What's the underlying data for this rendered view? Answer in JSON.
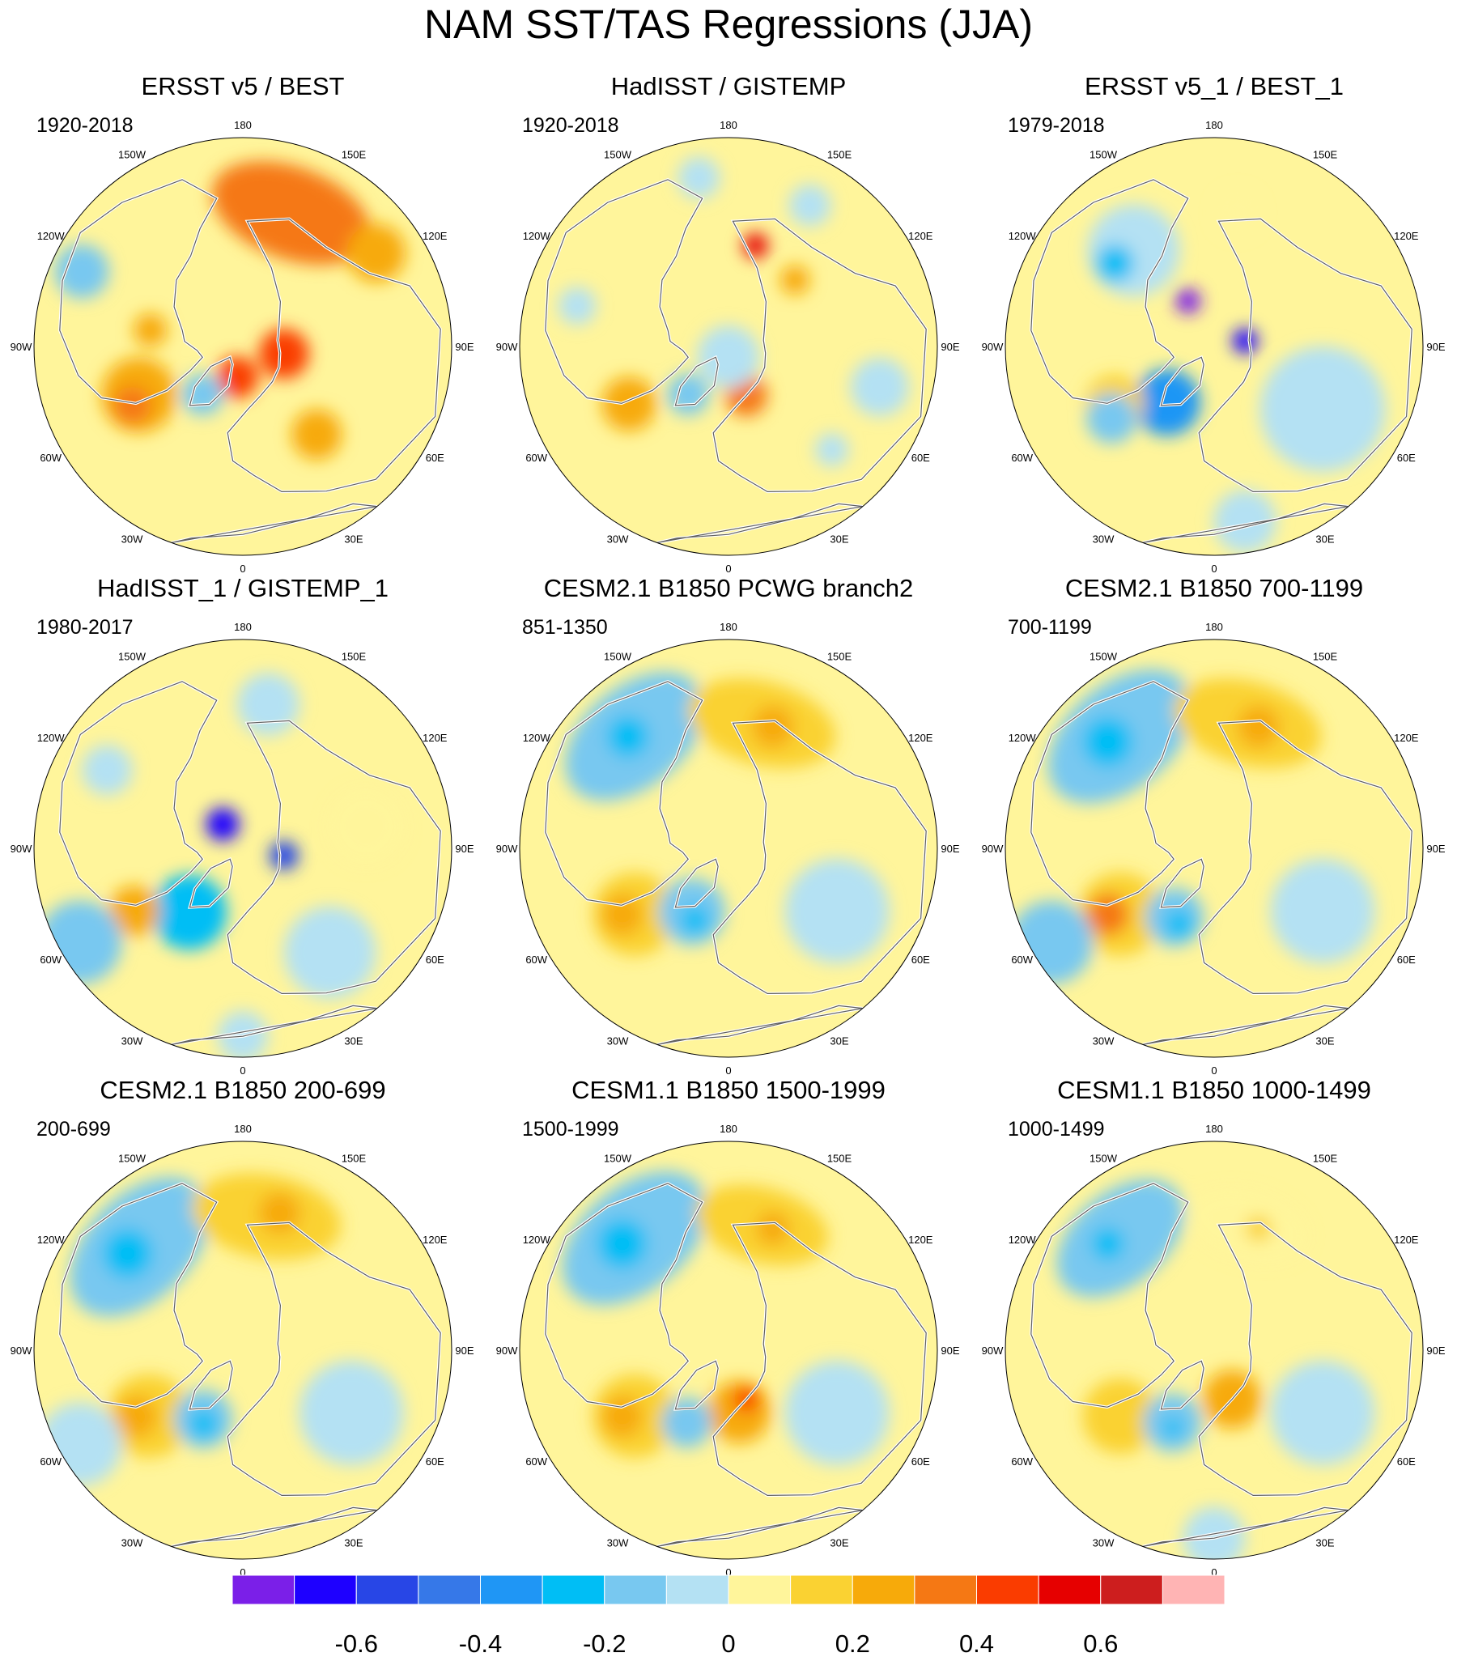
{
  "title": "NAM SST/TAS Regressions (JJA)",
  "longitude_labels": [
    "180",
    "150E",
    "120E",
    "90E",
    "60E",
    "30E",
    "0",
    "30W",
    "60W",
    "90W",
    "120W",
    "150W"
  ],
  "colors": {
    "background": "#ffffff",
    "land_outline": "#606060",
    "coast": "#ffffff"
  },
  "chart_data": {
    "type": "heatmap",
    "projection": "north-polar-stereographic",
    "variable": "SST/TAS regression on NAM",
    "season": "JJA",
    "panels": [
      {
        "title": "ERSST v5 / BEST",
        "period": "1920-2018"
      },
      {
        "title": "HadISST / GISTEMP",
        "period": "1920-2018"
      },
      {
        "title": "ERSST v5_1 / BEST_1",
        "period": "1979-2018"
      },
      {
        "title": "HadISST_1 / GISTEMP_1",
        "period": "1980-2017"
      },
      {
        "title": "CESM2.1 B1850 PCWG branch2",
        "period": "851-1350"
      },
      {
        "title": "CESM2.1 B1850 700-1199",
        "period": "700-1199"
      },
      {
        "title": "CESM2.1 B1850 200-699",
        "period": "200-699"
      },
      {
        "title": "CESM1.1 B1850 1500-1999",
        "period": "1500-1999"
      },
      {
        "title": "CESM1.1 B1850 1000-1499",
        "period": "1000-1499"
      }
    ],
    "colorbar": {
      "levels": [
        -0.7,
        -0.6,
        -0.5,
        -0.4,
        -0.3,
        -0.2,
        -0.1,
        0,
        0.1,
        0.2,
        0.3,
        0.4,
        0.5,
        0.6,
        0.7
      ],
      "colors": [
        "#7b1fe8",
        "#1e00ff",
        "#2846e6",
        "#3678e8",
        "#1f96f5",
        "#00bef5",
        "#78c8f0",
        "#b4e1f3",
        "#fff59b",
        "#fad232",
        "#f7aa0a",
        "#f57814",
        "#fa3c00",
        "#e60000",
        "#cd1e1e",
        "#ffb4b4"
      ],
      "tick_labels": [
        "-0.6",
        "-0.4",
        "-0.2",
        "0",
        "0.2",
        "0.4",
        "0.6"
      ],
      "tick_values": [
        -0.6,
        -0.4,
        -0.2,
        0,
        0.2,
        0.4,
        0.6
      ]
    },
    "anomaly_blobs": [
      [
        {
          "lon": 160,
          "r": 0.68,
          "size": 0.22,
          "cat": 11,
          "aspect": 1.8
        },
        {
          "lon": 125,
          "r": 0.78,
          "size": 0.14,
          "cat": 10
        },
        {
          "lon": 80,
          "r": 0.2,
          "size": 0.12,
          "cat": 12
        },
        {
          "lon": -10,
          "r": 0.15,
          "size": 0.1,
          "cat": 12
        },
        {
          "lon": -65,
          "r": 0.55,
          "size": 0.18,
          "cat": 10
        },
        {
          "lon": -62,
          "r": 0.6,
          "size": 0.09,
          "cat": 11
        },
        {
          "lon": -115,
          "r": 0.85,
          "size": 0.13,
          "cat": 6
        },
        {
          "lon": -40,
          "r": 0.3,
          "size": 0.1,
          "cat": 6
        },
        {
          "lon": 40,
          "r": 0.55,
          "size": 0.12,
          "cat": 10
        },
        {
          "lon": -100,
          "r": 0.45,
          "size": 0.08,
          "cat": 10
        }
      ],
      [
        {
          "lon": 150,
          "r": 0.78,
          "size": 0.1,
          "cat": 7
        },
        {
          "lon": -170,
          "r": 0.82,
          "size": 0.1,
          "cat": 7
        },
        {
          "lon": 165,
          "r": 0.5,
          "size": 0.06,
          "cat": 13
        },
        {
          "lon": -60,
          "r": 0.55,
          "size": 0.13,
          "cat": 10
        },
        {
          "lon": -40,
          "r": 0.3,
          "size": 0.1,
          "cat": 6
        },
        {
          "lon": 20,
          "r": 0.25,
          "size": 0.1,
          "cat": 11
        },
        {
          "lon": 0,
          "r": 0.05,
          "size": 0.15,
          "cat": 7
        },
        {
          "lon": 75,
          "r": 0.75,
          "size": 0.14,
          "cat": 7
        },
        {
          "lon": -105,
          "r": 0.75,
          "size": 0.09,
          "cat": 7
        },
        {
          "lon": 45,
          "r": 0.7,
          "size": 0.08,
          "cat": 7
        },
        {
          "lon": 135,
          "r": 0.45,
          "size": 0.07,
          "cat": 10
        }
      ],
      [
        {
          "lon": -140,
          "r": 0.6,
          "size": 0.22,
          "cat": 7
        },
        {
          "lon": -130,
          "r": 0.62,
          "size": 0.09,
          "cat": 5
        },
        {
          "lon": 170,
          "r": 0.65,
          "size": 0.1,
          "cat": 8
        },
        {
          "lon": -40,
          "r": 0.35,
          "size": 0.16,
          "cat": 4
        },
        {
          "lon": -60,
          "r": 0.55,
          "size": 0.14,
          "cat": 9
        },
        {
          "lon": -55,
          "r": 0.6,
          "size": 0.12,
          "cat": 6
        },
        {
          "lon": 60,
          "r": 0.6,
          "size": 0.3,
          "cat": 7
        },
        {
          "lon": 10,
          "r": 0.85,
          "size": 0.15,
          "cat": 7
        },
        {
          "lon": 100,
          "r": 0.15,
          "size": 0.06,
          "cat": 1
        },
        {
          "lon": -150,
          "r": 0.25,
          "size": 0.06,
          "cat": 0
        }
      ],
      [
        {
          "lon": -40,
          "r": 0.4,
          "size": 0.18,
          "cat": 5
        },
        {
          "lon": -60,
          "r": 0.6,
          "size": 0.12,
          "cat": 10
        },
        {
          "lon": -60,
          "r": 0.9,
          "size": 0.2,
          "cat": 6
        },
        {
          "lon": 0,
          "r": 0.9,
          "size": 0.12,
          "cat": 7
        },
        {
          "lon": 40,
          "r": 0.65,
          "size": 0.22,
          "cat": 7
        },
        {
          "lon": 170,
          "r": 0.7,
          "size": 0.15,
          "cat": 7
        },
        {
          "lon": -140,
          "r": 0.15,
          "size": 0.08,
          "cat": 1
        },
        {
          "lon": 80,
          "r": 0.2,
          "size": 0.07,
          "cat": 2
        },
        {
          "lon": 100,
          "r": 0.6,
          "size": 0.18,
          "cat": 8
        },
        {
          "lon": -120,
          "r": 0.75,
          "size": 0.12,
          "cat": 7
        }
      ],
      [
        {
          "lon": -140,
          "r": 0.7,
          "size": 0.24,
          "cat": 6,
          "aspect": 1.6
        },
        {
          "lon": -138,
          "r": 0.72,
          "size": 0.1,
          "cat": 5
        },
        {
          "lon": 165,
          "r": 0.62,
          "size": 0.2,
          "cat": 9,
          "aspect": 1.8
        },
        {
          "lon": 160,
          "r": 0.62,
          "size": 0.1,
          "cat": 10
        },
        {
          "lon": -55,
          "r": 0.55,
          "size": 0.2,
          "cat": 9
        },
        {
          "lon": -58,
          "r": 0.6,
          "size": 0.1,
          "cat": 10
        },
        {
          "lon": -30,
          "r": 0.35,
          "size": 0.16,
          "cat": 6
        },
        {
          "lon": -25,
          "r": 0.38,
          "size": 0.07,
          "cat": 5
        },
        {
          "lon": 60,
          "r": 0.6,
          "size": 0.25,
          "cat": 7
        }
      ],
      [
        {
          "lon": -140,
          "r": 0.7,
          "size": 0.25,
          "cat": 6,
          "aspect": 1.6
        },
        {
          "lon": -135,
          "r": 0.72,
          "size": 0.12,
          "cat": 5
        },
        {
          "lon": 165,
          "r": 0.62,
          "size": 0.2,
          "cat": 9,
          "aspect": 1.8
        },
        {
          "lon": 160,
          "r": 0.62,
          "size": 0.1,
          "cat": 10
        },
        {
          "lon": -55,
          "r": 0.55,
          "size": 0.2,
          "cat": 9
        },
        {
          "lon": -58,
          "r": 0.6,
          "size": 0.1,
          "cat": 11
        },
        {
          "lon": -30,
          "r": 0.38,
          "size": 0.14,
          "cat": 6
        },
        {
          "lon": -25,
          "r": 0.4,
          "size": 0.07,
          "cat": 5
        },
        {
          "lon": 60,
          "r": 0.6,
          "size": 0.25,
          "cat": 7
        },
        {
          "lon": -60,
          "r": 0.9,
          "size": 0.2,
          "cat": 6
        }
      ],
      [
        {
          "lon": -135,
          "r": 0.7,
          "size": 0.25,
          "cat": 6,
          "aspect": 1.6
        },
        {
          "lon": -130,
          "r": 0.72,
          "size": 0.12,
          "cat": 5
        },
        {
          "lon": 170,
          "r": 0.65,
          "size": 0.2,
          "cat": 9,
          "aspect": 1.8
        },
        {
          "lon": 165,
          "r": 0.68,
          "size": 0.1,
          "cat": 10
        },
        {
          "lon": -55,
          "r": 0.55,
          "size": 0.2,
          "cat": 9
        },
        {
          "lon": -58,
          "r": 0.6,
          "size": 0.1,
          "cat": 10
        },
        {
          "lon": -30,
          "r": 0.38,
          "size": 0.14,
          "cat": 6
        },
        {
          "lon": -28,
          "r": 0.4,
          "size": 0.07,
          "cat": 5
        },
        {
          "lon": 60,
          "r": 0.6,
          "size": 0.25,
          "cat": 7
        },
        {
          "lon": -60,
          "r": 0.9,
          "size": 0.2,
          "cat": 7
        }
      ],
      [
        {
          "lon": -140,
          "r": 0.7,
          "size": 0.25,
          "cat": 6,
          "aspect": 1.6
        },
        {
          "lon": -135,
          "r": 0.72,
          "size": 0.12,
          "cat": 5
        },
        {
          "lon": 165,
          "r": 0.62,
          "size": 0.18,
          "cat": 9,
          "aspect": 1.8
        },
        {
          "lon": 160,
          "r": 0.62,
          "size": 0.08,
          "cat": 10
        },
        {
          "lon": -55,
          "r": 0.55,
          "size": 0.2,
          "cat": 9
        },
        {
          "lon": -58,
          "r": 0.6,
          "size": 0.1,
          "cat": 10
        },
        {
          "lon": 10,
          "r": 0.3,
          "size": 0.15,
          "cat": 10
        },
        {
          "lon": 20,
          "r": 0.25,
          "size": 0.06,
          "cat": 12
        },
        {
          "lon": -30,
          "r": 0.4,
          "size": 0.12,
          "cat": 6
        },
        {
          "lon": 60,
          "r": 0.6,
          "size": 0.25,
          "cat": 7
        }
      ],
      [
        {
          "lon": -140,
          "r": 0.7,
          "size": 0.22,
          "cat": 6,
          "aspect": 1.6
        },
        {
          "lon": -135,
          "r": 0.72,
          "size": 0.08,
          "cat": 5
        },
        {
          "lon": 165,
          "r": 0.62,
          "size": 0.16,
          "cat": 8,
          "aspect": 1.8
        },
        {
          "lon": 160,
          "r": 0.62,
          "size": 0.06,
          "cat": 9
        },
        {
          "lon": -55,
          "r": 0.55,
          "size": 0.18,
          "cat": 9
        },
        {
          "lon": 20,
          "r": 0.25,
          "size": 0.14,
          "cat": 10
        },
        {
          "lon": -30,
          "r": 0.4,
          "size": 0.14,
          "cat": 6
        },
        {
          "lon": -28,
          "r": 0.42,
          "size": 0.05,
          "cat": 5
        },
        {
          "lon": 60,
          "r": 0.6,
          "size": 0.25,
          "cat": 7
        },
        {
          "lon": 0,
          "r": 0.9,
          "size": 0.15,
          "cat": 7
        }
      ]
    ]
  }
}
